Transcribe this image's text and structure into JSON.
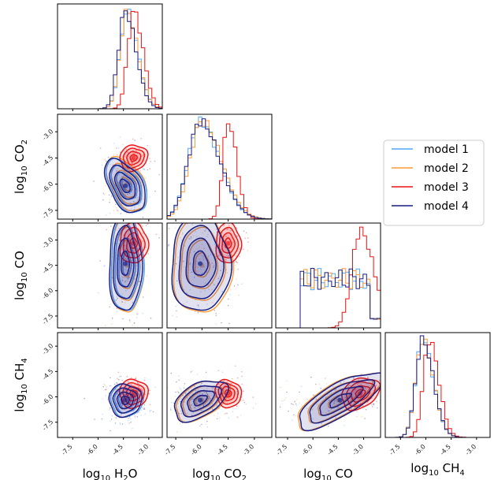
{
  "chart_data": {
    "type": "corner",
    "parameters": [
      {
        "name": "H2O",
        "label_prefix": "log",
        "label_sub": "10",
        "label_main": "H",
        "label_main_sub": "2",
        "label_tail": "O",
        "range": [
          -8.4,
          -2.2
        ]
      },
      {
        "name": "CO2",
        "label_prefix": "log",
        "label_sub": "10",
        "label_main": "CO",
        "label_main_sub": "2",
        "label_tail": "",
        "range": [
          -8.0,
          -2.0
        ]
      },
      {
        "name": "CO",
        "label_prefix": "log",
        "label_sub": "10",
        "label_main": "CO",
        "label_main_sub": "",
        "label_tail": "",
        "range": [
          -8.2,
          -2.0
        ]
      },
      {
        "name": "CH4",
        "label_prefix": "log",
        "label_sub": "10",
        "label_main": "CH",
        "label_main_sub": "4",
        "label_tail": "",
        "range": [
          -8.4,
          -2.2
        ]
      }
    ],
    "ticks": [
      "-7.5",
      "-6.0",
      "-4.5",
      "-3.0"
    ],
    "tick_values": [
      -7.5,
      -6.0,
      -4.5,
      -3.0
    ],
    "legend": {
      "placement": "right",
      "entries": [
        {
          "name": "model 1",
          "color": "#4da6ff"
        },
        {
          "name": "model 2",
          "color": "#ff9933"
        },
        {
          "name": "model 3",
          "color": "#ee1111"
        },
        {
          "name": "model 4",
          "color": "#1a1a80"
        }
      ]
    },
    "series": [
      {
        "name": "model 1",
        "color": "#4da6ff",
        "modes": [
          -4.3,
          -6.1,
          -4.4,
          -6.2
        ],
        "sigmas": [
          0.4,
          0.7,
          1.2,
          0.4
        ]
      },
      {
        "name": "model 2",
        "color": "#ff9933",
        "modes": [
          -4.3,
          -6.0,
          -4.5,
          -6.2
        ],
        "sigmas": [
          0.4,
          0.7,
          1.2,
          0.4
        ]
      },
      {
        "name": "model 3",
        "color": "#ee1111",
        "modes": [
          -3.9,
          -4.5,
          -3.2,
          -5.8
        ],
        "sigmas": [
          0.35,
          0.3,
          0.5,
          0.35
        ]
      },
      {
        "name": "model 4",
        "color": "#1a1a80",
        "modes": [
          -4.4,
          -6.1,
          -4.4,
          -6.2
        ],
        "sigmas": [
          0.4,
          0.7,
          1.2,
          0.4
        ]
      }
    ]
  }
}
